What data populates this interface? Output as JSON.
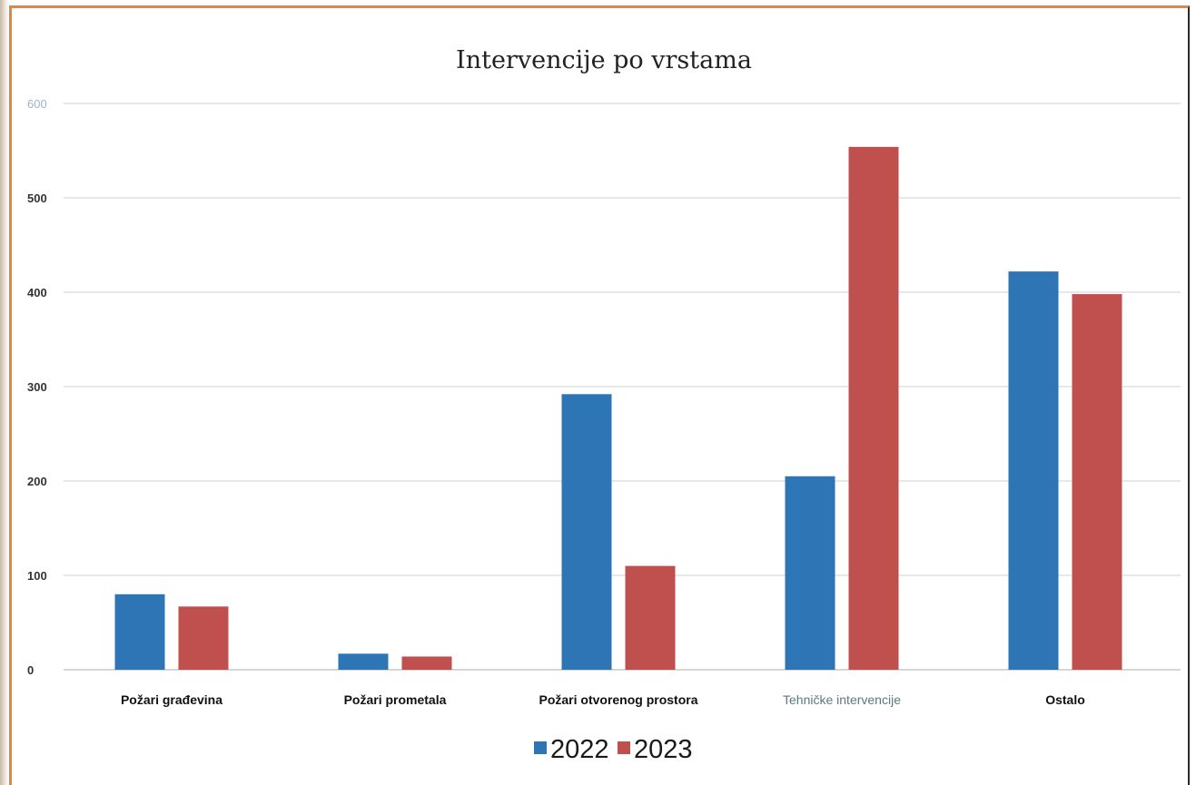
{
  "chart_data": {
    "type": "bar",
    "title": "Intervencije po vrstama",
    "categories": [
      "Požari građevina",
      "Požari prometala",
      "Požari otvorenog prostora",
      "Tehničke intervencije",
      "Ostalo"
    ],
    "series": [
      {
        "name": "2022",
        "values": [
          80,
          17,
          292,
          205,
          422
        ],
        "color": "#2e75b6"
      },
      {
        "name": "2023",
        "values": [
          67,
          14,
          110,
          554,
          398
        ],
        "color": "#c0504d"
      }
    ],
    "ylim": [
      0,
      600
    ],
    "yticks": [
      "0",
      "100",
      "200",
      "300",
      "400",
      "500",
      "600"
    ],
    "xlabel": "",
    "ylabel": "",
    "grid": true,
    "legend": "bottom"
  }
}
